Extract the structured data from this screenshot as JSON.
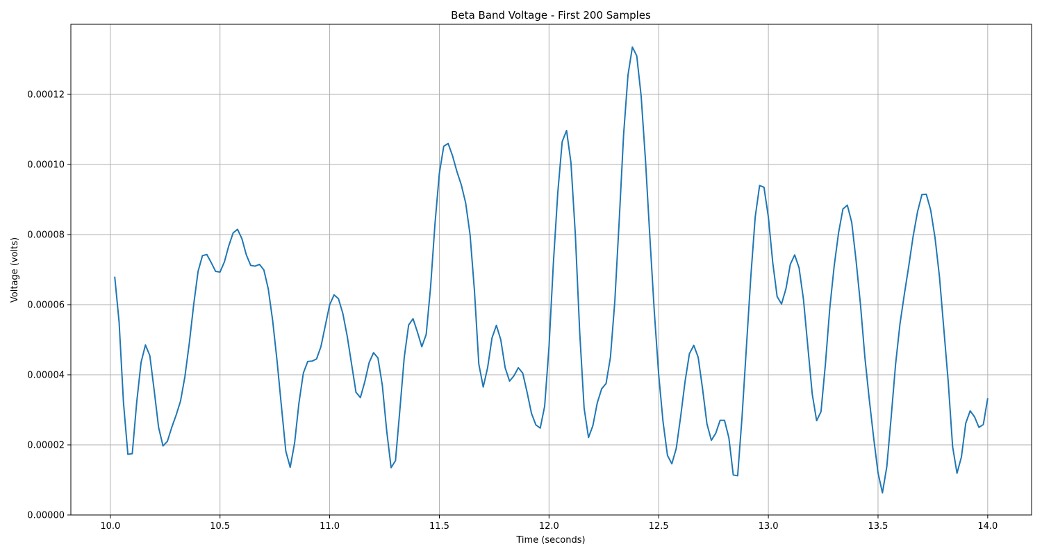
{
  "chart_data": {
    "type": "line",
    "title": "Beta Band Voltage - First 200 Samples",
    "xlabel": "Time (seconds)",
    "ylabel": "Voltage (volts)",
    "xlim": [
      9.82,
      14.2
    ],
    "ylim": [
      0.0,
      0.00014
    ],
    "grid": true,
    "line_color": "#1f77b4",
    "xticks": [
      10.0,
      10.5,
      11.0,
      11.5,
      12.0,
      12.5,
      13.0,
      13.5,
      14.0
    ],
    "xtick_labels": [
      "10.0",
      "10.5",
      "11.0",
      "11.5",
      "12.0",
      "12.5",
      "13.0",
      "13.5",
      "14.0"
    ],
    "yticks": [
      0.0,
      2e-05,
      4e-05,
      6e-05,
      8e-05,
      0.0001,
      0.00012
    ],
    "ytick_labels": [
      "0.00000",
      "0.00002",
      "0.00004",
      "0.00006",
      "0.00008",
      "0.00010",
      "0.00012"
    ],
    "series": [
      {
        "points": [
          [
            10.02,
            6.8e-05
          ],
          [
            10.04,
            5.5e-05
          ],
          [
            10.06,
            3.2e-05
          ],
          [
            10.08,
            1.73e-05
          ],
          [
            10.1,
            1.75e-05
          ],
          [
            10.12,
            3.2e-05
          ],
          [
            10.14,
            4.35e-05
          ],
          [
            10.16,
            4.85e-05
          ],
          [
            10.18,
            4.55e-05
          ],
          [
            10.2,
            3.55e-05
          ],
          [
            10.22,
            2.5e-05
          ],
          [
            10.24,
            1.97e-05
          ],
          [
            10.26,
            2.1e-05
          ],
          [
            10.28,
            2.5e-05
          ],
          [
            10.3,
            2.85e-05
          ],
          [
            10.32,
            3.25e-05
          ],
          [
            10.34,
            3.95e-05
          ],
          [
            10.36,
            4.9e-05
          ],
          [
            10.38,
            6e-05
          ],
          [
            10.4,
            6.95e-05
          ],
          [
            10.42,
            7.4e-05
          ],
          [
            10.44,
            7.43e-05
          ],
          [
            10.46,
            7.2e-05
          ],
          [
            10.48,
            6.95e-05
          ],
          [
            10.5,
            6.93e-05
          ],
          [
            10.52,
            7.22e-05
          ],
          [
            10.54,
            7.68e-05
          ],
          [
            10.56,
            8.05e-05
          ],
          [
            10.58,
            8.15e-05
          ],
          [
            10.6,
            7.88e-05
          ],
          [
            10.62,
            7.42e-05
          ],
          [
            10.64,
            7.12e-05
          ],
          [
            10.66,
            7.1e-05
          ],
          [
            10.68,
            7.15e-05
          ],
          [
            10.7,
            6.99e-05
          ],
          [
            10.72,
            6.45e-05
          ],
          [
            10.74,
            5.55e-05
          ],
          [
            10.76,
            4.4e-05
          ],
          [
            10.78,
            3.1e-05
          ],
          [
            10.8,
            1.82e-05
          ],
          [
            10.82,
            1.36e-05
          ],
          [
            10.84,
            2.05e-05
          ],
          [
            10.86,
            3.2e-05
          ],
          [
            10.88,
            4.05e-05
          ],
          [
            10.9,
            4.38e-05
          ],
          [
            10.92,
            4.39e-05
          ],
          [
            10.94,
            4.45e-05
          ],
          [
            10.96,
            4.8e-05
          ],
          [
            10.98,
            5.4e-05
          ],
          [
            11.0,
            6e-05
          ],
          [
            11.02,
            6.28e-05
          ],
          [
            11.04,
            6.17e-05
          ],
          [
            11.06,
            5.75e-05
          ],
          [
            11.08,
            5.1e-05
          ],
          [
            11.1,
            4.3e-05
          ],
          [
            11.12,
            3.5e-05
          ],
          [
            11.14,
            3.35e-05
          ],
          [
            11.16,
            3.8e-05
          ],
          [
            11.18,
            4.35e-05
          ],
          [
            11.2,
            4.63e-05
          ],
          [
            11.22,
            4.48e-05
          ],
          [
            11.24,
            3.7e-05
          ],
          [
            11.26,
            2.4e-05
          ],
          [
            11.28,
            1.35e-05
          ],
          [
            11.3,
            1.55e-05
          ],
          [
            11.32,
            3e-05
          ],
          [
            11.34,
            4.5e-05
          ],
          [
            11.36,
            5.42e-05
          ],
          [
            11.38,
            5.6e-05
          ],
          [
            11.4,
            5.22e-05
          ],
          [
            11.42,
            4.8e-05
          ],
          [
            11.44,
            5.15e-05
          ],
          [
            11.46,
            6.5e-05
          ],
          [
            11.48,
            8.3e-05
          ],
          [
            11.5,
            9.75e-05
          ],
          [
            11.52,
            0.0001052
          ],
          [
            11.54,
            0.000106
          ],
          [
            11.56,
            0.0001025
          ],
          [
            11.58,
            9.8e-05
          ],
          [
            11.6,
            9.42e-05
          ],
          [
            11.62,
            8.9e-05
          ],
          [
            11.64,
            8e-05
          ],
          [
            11.66,
            6.4e-05
          ],
          [
            11.68,
            4.3e-05
          ],
          [
            11.7,
            3.65e-05
          ],
          [
            11.72,
            4.2e-05
          ],
          [
            11.74,
            5.05e-05
          ],
          [
            11.76,
            5.41e-05
          ],
          [
            11.78,
            5e-05
          ],
          [
            11.8,
            4.2e-05
          ],
          [
            11.82,
            3.82e-05
          ],
          [
            11.84,
            3.97e-05
          ],
          [
            11.86,
            4.2e-05
          ],
          [
            11.88,
            4.05e-05
          ],
          [
            11.9,
            3.5e-05
          ],
          [
            11.92,
            2.9e-05
          ],
          [
            11.94,
            2.57e-05
          ],
          [
            11.96,
            2.48e-05
          ],
          [
            11.98,
            3.1e-05
          ],
          [
            12.0,
            4.8e-05
          ],
          [
            12.02,
            7.2e-05
          ],
          [
            12.04,
            9.2e-05
          ],
          [
            12.06,
            0.0001065
          ],
          [
            12.08,
            0.0001097
          ],
          [
            12.1,
            0.0001005
          ],
          [
            12.12,
            8e-05
          ],
          [
            12.14,
            5.2e-05
          ],
          [
            12.16,
            3.05e-05
          ],
          [
            12.18,
            2.21e-05
          ],
          [
            12.2,
            2.55e-05
          ],
          [
            12.22,
            3.2e-05
          ],
          [
            12.24,
            3.6e-05
          ],
          [
            12.26,
            3.75e-05
          ],
          [
            12.28,
            4.5e-05
          ],
          [
            12.3,
            6.1e-05
          ],
          [
            12.32,
            8.4e-05
          ],
          [
            12.34,
            0.0001085
          ],
          [
            12.36,
            0.0001255
          ],
          [
            12.38,
            0.0001335
          ],
          [
            12.4,
            0.000131
          ],
          [
            12.42,
            0.0001195
          ],
          [
            12.44,
            0.000101
          ],
          [
            12.46,
            7.9e-05
          ],
          [
            12.48,
            5.8e-05
          ],
          [
            12.5,
            4e-05
          ],
          [
            12.52,
            2.65e-05
          ],
          [
            12.54,
            1.7e-05
          ],
          [
            12.56,
            1.46e-05
          ],
          [
            12.58,
            1.9e-05
          ],
          [
            12.6,
            2.8e-05
          ],
          [
            12.62,
            3.8e-05
          ],
          [
            12.64,
            4.6e-05
          ],
          [
            12.66,
            4.84e-05
          ],
          [
            12.68,
            4.5e-05
          ],
          [
            12.7,
            3.6e-05
          ],
          [
            12.72,
            2.6e-05
          ],
          [
            12.74,
            2.13e-05
          ],
          [
            12.76,
            2.33e-05
          ],
          [
            12.78,
            2.7e-05
          ],
          [
            12.8,
            2.7e-05
          ],
          [
            12.82,
            2.2e-05
          ],
          [
            12.84,
            1.14e-05
          ],
          [
            12.86,
            1.12e-05
          ],
          [
            12.88,
            2.8e-05
          ],
          [
            12.9,
            4.8e-05
          ],
          [
            12.92,
            6.8e-05
          ],
          [
            12.94,
            8.5e-05
          ],
          [
            12.96,
            9.4e-05
          ],
          [
            12.98,
            9.35e-05
          ],
          [
            13.0,
            8.5e-05
          ],
          [
            13.02,
            7.2e-05
          ],
          [
            13.04,
            6.23e-05
          ],
          [
            13.06,
            6.02e-05
          ],
          [
            13.08,
            6.45e-05
          ],
          [
            13.1,
            7.15e-05
          ],
          [
            13.12,
            7.42e-05
          ],
          [
            13.14,
            7.05e-05
          ],
          [
            13.16,
            6.15e-05
          ],
          [
            13.18,
            4.8e-05
          ],
          [
            13.2,
            3.45e-05
          ],
          [
            13.22,
            2.69e-05
          ],
          [
            13.24,
            2.95e-05
          ],
          [
            13.26,
            4.3e-05
          ],
          [
            13.28,
            5.9e-05
          ],
          [
            13.3,
            7.1e-05
          ],
          [
            13.32,
            8.05e-05
          ],
          [
            13.34,
            8.73e-05
          ],
          [
            13.36,
            8.84e-05
          ],
          [
            13.38,
            8.35e-05
          ],
          [
            13.4,
            7.25e-05
          ],
          [
            13.42,
            6e-05
          ],
          [
            13.44,
            4.5e-05
          ],
          [
            13.46,
            3.3e-05
          ],
          [
            13.48,
            2.2e-05
          ],
          [
            13.5,
            1.2e-05
          ],
          [
            13.52,
            6.3e-06
          ],
          [
            13.54,
            1.38e-05
          ],
          [
            13.56,
            2.8e-05
          ],
          [
            13.58,
            4.3e-05
          ],
          [
            13.6,
            5.45e-05
          ],
          [
            13.62,
            6.3e-05
          ],
          [
            13.64,
            7.1e-05
          ],
          [
            13.66,
            7.95e-05
          ],
          [
            13.68,
            8.65e-05
          ],
          [
            13.7,
            9.14e-05
          ],
          [
            13.72,
            9.15e-05
          ],
          [
            13.74,
            8.7e-05
          ],
          [
            13.76,
            7.9e-05
          ],
          [
            13.78,
            6.8e-05
          ],
          [
            13.8,
            5.3e-05
          ],
          [
            13.82,
            3.8e-05
          ],
          [
            13.84,
            1.95e-05
          ],
          [
            13.86,
            1.19e-05
          ],
          [
            13.88,
            1.65e-05
          ],
          [
            13.9,
            2.62e-05
          ],
          [
            13.92,
            2.97e-05
          ],
          [
            13.94,
            2.8e-05
          ],
          [
            13.96,
            2.5e-05
          ],
          [
            13.98,
            2.58e-05
          ],
          [
            14.0,
            3.33e-05
          ]
        ]
      }
    ]
  }
}
